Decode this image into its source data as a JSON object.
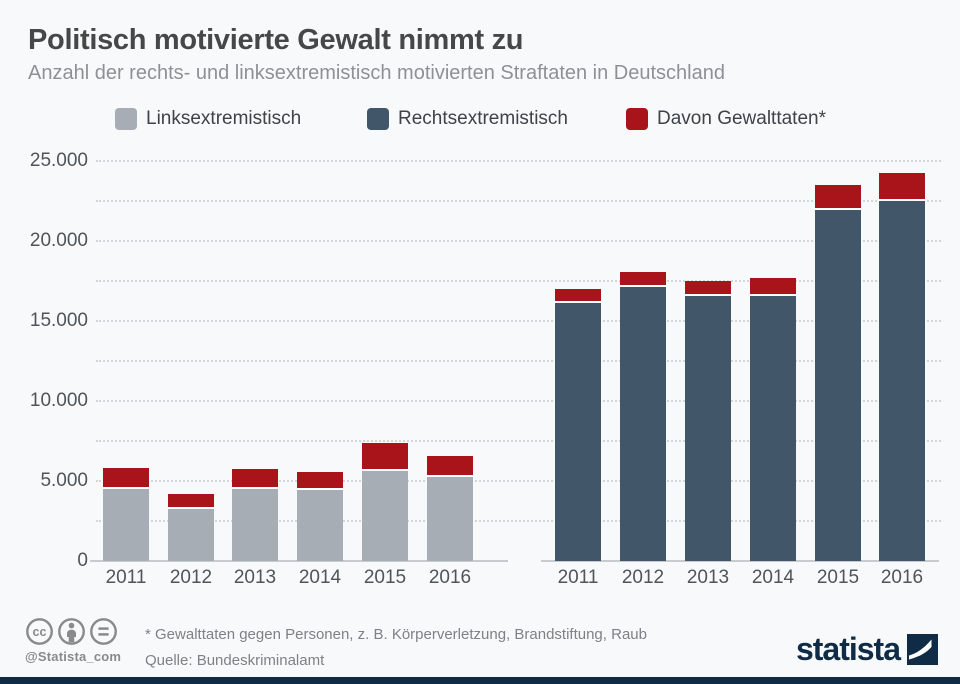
{
  "header": {
    "title": "Politisch motivierte Gewalt nimmt zu",
    "subtitle": "Anzahl der rechts- und linksextremistisch motivierten Straftaten in Deutschland"
  },
  "legend": [
    {
      "label": "Linksextremistisch",
      "color": "#a6adb4"
    },
    {
      "label": "Rechtsextremistisch",
      "color": "#42566a"
    },
    {
      "label": "Davon Gewalttaten*",
      "color": "#a81419"
    }
  ],
  "colors": {
    "bg": "#f8f9fa",
    "navy": "#0f2b46",
    "grid": "#d3d6d8",
    "baseline": "#c7cbce",
    "axistext": "#4e555b",
    "titlecol": "#474747",
    "subtitlecol": "#8d9196",
    "legendtext": "#3d4348",
    "violence_red": "#a81419",
    "links_gray": "#a6adb4",
    "rechts_slate": "#42566a"
  },
  "chart_data": {
    "type": "bar",
    "stacked": true,
    "grid": "dotted, horizontal, every 2500",
    "legend_position": "top",
    "title": "Politisch motivierte Gewalt nimmt zu",
    "xlabel": "",
    "ylabel": "",
    "ylim": [
      0,
      25000
    ],
    "y_ticks": [
      {
        "value": 0,
        "label": "0"
      },
      {
        "value": 5000,
        "label": "5.000"
      },
      {
        "value": 10000,
        "label": "10.000"
      },
      {
        "value": 15000,
        "label": "15.000"
      },
      {
        "value": 20000,
        "label": "20.000"
      },
      {
        "value": 25000,
        "label": "25.000"
      }
    ],
    "categories": [
      "2011",
      "2012",
      "2013",
      "2014",
      "2015",
      "2016"
    ],
    "overlay_name": "Davon Gewalttaten*",
    "groups": [
      {
        "id": "links",
        "name": "Linksextremistisch",
        "color": "#a6adb4",
        "series": [
          {
            "name": "Straftaten",
            "values": [
              4502,
              3229,
              4491,
              4424,
              5620,
              5230
            ]
          },
          {
            "name": "Davon Gewalttaten",
            "values": [
              1157,
              829,
              1110,
              995,
              1608,
              1201
            ]
          }
        ]
      },
      {
        "id": "rechts",
        "name": "Rechtsextremistisch",
        "color": "#42566a",
        "series": [
          {
            "name": "Straftaten",
            "values": [
              16142,
              17134,
              16557,
              16559,
              21933,
              22471
            ]
          },
          {
            "name": "Davon Gewalttaten",
            "values": [
              755,
              802,
              801,
              990,
              1408,
              1600
            ]
          }
        ]
      }
    ]
  },
  "footer": {
    "footnote": "* Gewalttaten gegen Personen, z. B. Körperverletzung, Brandstiftung, Raub",
    "source": "Quelle: Bundeskriminalamt",
    "handle": "@Statista_com",
    "license_icons": [
      "cc-icon",
      "attribution-icon",
      "equal-icon"
    ]
  },
  "branding": {
    "logo_text": "statista"
  }
}
